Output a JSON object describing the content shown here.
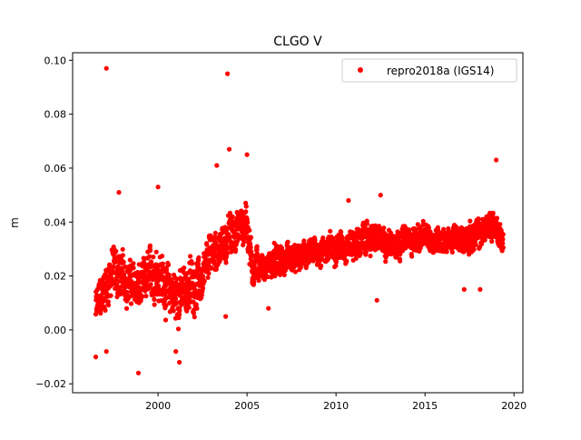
{
  "chart_data": {
    "type": "scatter",
    "title": "CLGO V",
    "xlabel": "",
    "ylabel": "m",
    "xlim": [
      1995.2,
      2020.5
    ],
    "ylim": [
      -0.0233,
      0.1028
    ],
    "xticks": [
      2000,
      2005,
      2010,
      2015,
      2020
    ],
    "xtick_labels": [
      "2000",
      "2005",
      "2010",
      "2015",
      "2020"
    ],
    "yticks": [
      -0.02,
      0.0,
      0.02,
      0.04,
      0.06,
      0.08,
      0.1
    ],
    "ytick_labels": [
      "−0.02",
      "0.00",
      "0.02",
      "0.04",
      "0.06",
      "0.08",
      "0.10"
    ],
    "grid": false,
    "legend": {
      "position": "top-right",
      "entries": [
        "repro2018a (IGS14)"
      ]
    },
    "series": [
      {
        "name": "repro2018a (IGS14)",
        "color": "#ff0000",
        "envelope_note": "dense daily point cloud; [year, low, high] in m",
        "envelope": [
          [
            1996.5,
            -0.005,
            0.02
          ],
          [
            1997.0,
            0.0,
            0.03
          ],
          [
            1997.5,
            0.005,
            0.04
          ],
          [
            1998.0,
            0.005,
            0.035
          ],
          [
            1998.5,
            0.005,
            0.03
          ],
          [
            1999.0,
            0.0,
            0.03
          ],
          [
            1999.5,
            0.005,
            0.035
          ],
          [
            2000.0,
            0.005,
            0.04
          ],
          [
            2000.5,
            0.0,
            0.03
          ],
          [
            2001.0,
            -0.005,
            0.03
          ],
          [
            2001.5,
            0.0,
            0.03
          ],
          [
            2002.0,
            0.0,
            0.035
          ],
          [
            2002.5,
            0.005,
            0.03
          ],
          [
            2003.0,
            0.015,
            0.045
          ],
          [
            2003.5,
            0.02,
            0.04
          ],
          [
            2004.0,
            0.02,
            0.05
          ],
          [
            2004.5,
            0.025,
            0.05
          ],
          [
            2005.0,
            0.025,
            0.055
          ],
          [
            2005.3,
            0.01,
            0.035
          ],
          [
            2005.7,
            0.015,
            0.035
          ],
          [
            2006.0,
            0.015,
            0.03
          ],
          [
            2006.5,
            0.015,
            0.035
          ],
          [
            2007.0,
            0.015,
            0.035
          ],
          [
            2007.5,
            0.015,
            0.035
          ],
          [
            2008.0,
            0.018,
            0.035
          ],
          [
            2009.0,
            0.02,
            0.038
          ],
          [
            2010.0,
            0.022,
            0.04
          ],
          [
            2011.0,
            0.022,
            0.042
          ],
          [
            2012.0,
            0.025,
            0.043
          ],
          [
            2013.0,
            0.022,
            0.042
          ],
          [
            2014.0,
            0.025,
            0.042
          ],
          [
            2015.0,
            0.025,
            0.043
          ],
          [
            2016.0,
            0.025,
            0.042
          ],
          [
            2017.0,
            0.025,
            0.042
          ],
          [
            2018.0,
            0.025,
            0.045
          ],
          [
            2018.8,
            0.03,
            0.05
          ],
          [
            2019.4,
            0.025,
            0.04
          ]
        ],
        "outliers": [
          [
            1997.1,
            0.097
          ],
          [
            2003.9,
            0.095
          ],
          [
            1998.9,
            -0.016
          ],
          [
            1996.5,
            -0.01
          ],
          [
            2001.2,
            -0.012
          ],
          [
            2004.0,
            0.067
          ],
          [
            2005.0,
            0.065
          ],
          [
            2003.3,
            0.061
          ],
          [
            2019.0,
            0.063
          ],
          [
            1997.8,
            0.051
          ],
          [
            2000.0,
            0.053
          ],
          [
            2010.7,
            0.048
          ],
          [
            2012.5,
            0.05
          ],
          [
            2006.2,
            0.008
          ],
          [
            2012.3,
            0.011
          ],
          [
            2017.2,
            0.015
          ],
          [
            2018.1,
            0.015
          ],
          [
            2003.8,
            0.005
          ],
          [
            2001.0,
            -0.008
          ],
          [
            1997.1,
            -0.008
          ]
        ]
      }
    ]
  }
}
